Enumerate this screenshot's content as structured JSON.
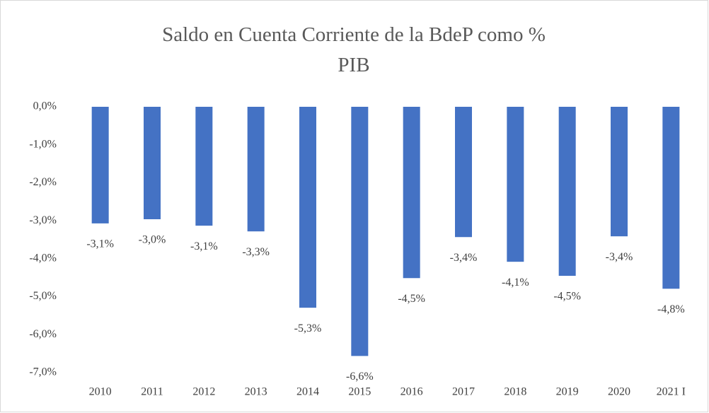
{
  "chart_data": {
    "type": "bar",
    "title": "Saldo en Cuenta Corriente de la BdeP como % PIB",
    "categories": [
      "2010",
      "2011",
      "2012",
      "2013",
      "2014",
      "2015",
      "2016",
      "2017",
      "2018",
      "2019",
      "2020",
      "2021 I"
    ],
    "values": [
      -3.07,
      -2.96,
      -3.13,
      -3.28,
      -5.29,
      -6.56,
      -4.51,
      -3.43,
      -4.08,
      -4.45,
      -3.41,
      -4.79
    ],
    "value_labels": [
      "-3,1%",
      "-3,0%",
      "-3,1%",
      "-3,3%",
      "-5,3%",
      "-6,6%",
      "-4,5%",
      "-3,4%",
      "-4,1%",
      "-4,5%",
      "-3,4%",
      "-4,8%"
    ],
    "color": "#4472c4",
    "ylim": [
      -7,
      0
    ],
    "yticks": [
      {
        "value": 0,
        "label": "0,0%"
      },
      {
        "value": -1,
        "label": "-1,0%"
      },
      {
        "value": -2,
        "label": "-2,0%"
      },
      {
        "value": -3,
        "label": "-3,0%"
      },
      {
        "value": -4,
        "label": "-4,0%"
      },
      {
        "value": -5,
        "label": "-5,0%"
      },
      {
        "value": -6,
        "label": "-6,0%"
      },
      {
        "value": -7,
        "label": "-7,0%"
      }
    ],
    "grid": false
  }
}
